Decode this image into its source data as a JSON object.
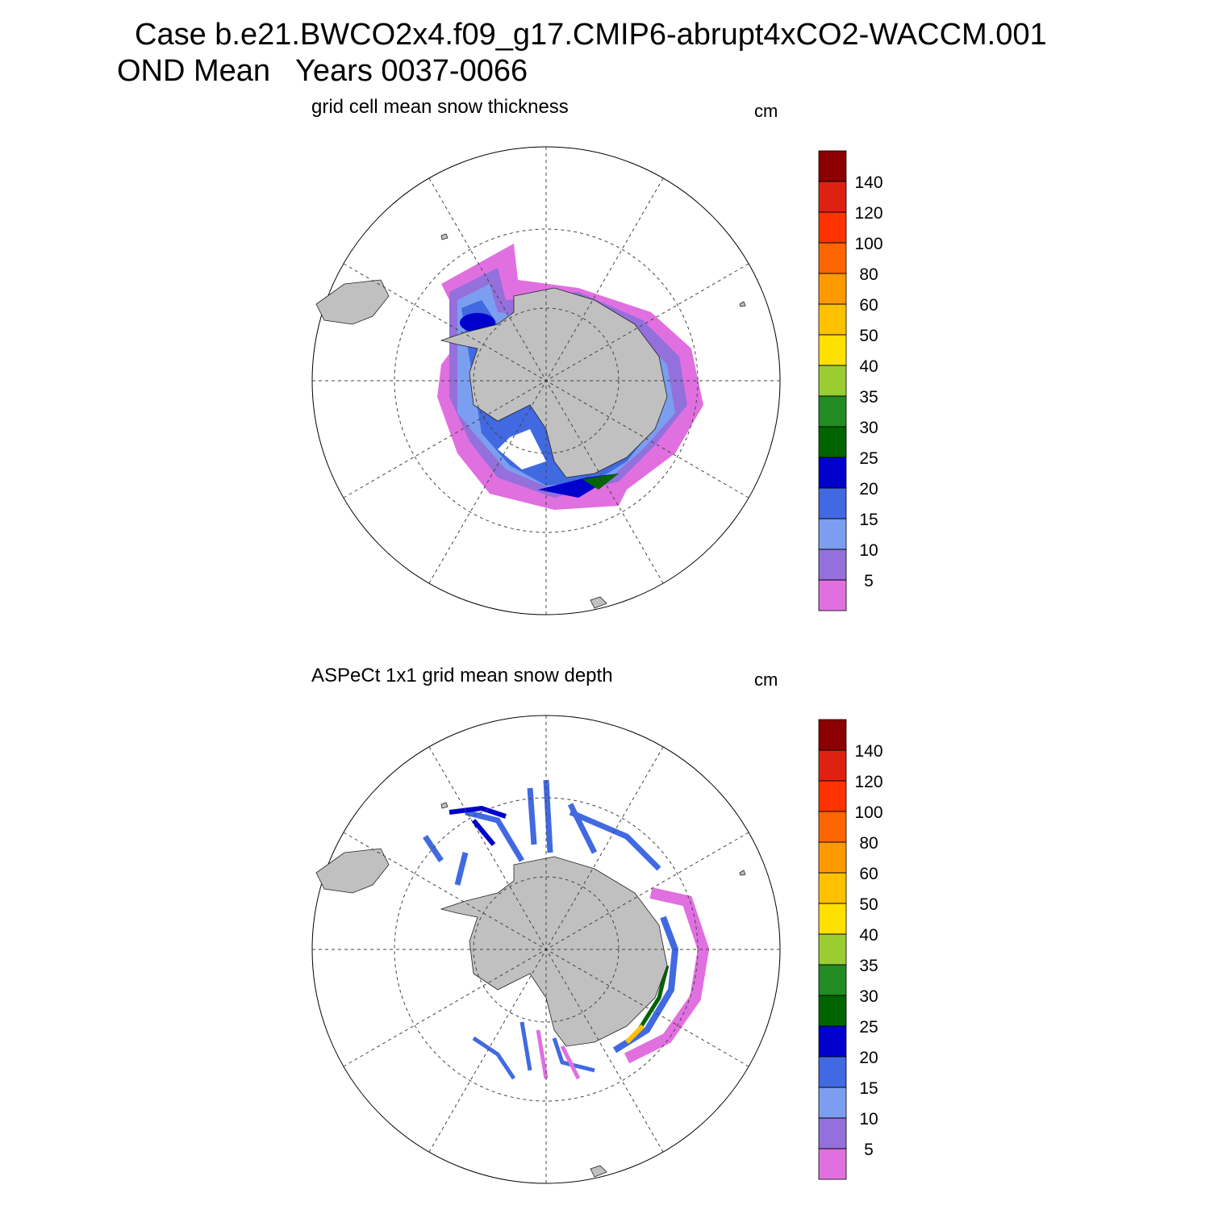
{
  "title": [
    "Case b.e21.BWCO2x4.f09_g17.CMIP6-abrupt4xCO2-WACCM.001",
    "OND Mean   Years 0037-0066"
  ],
  "panels": [
    {
      "subtitle": "grid cell mean snow thickness",
      "units": "cm",
      "colorbar": {
        "levels": [
          5,
          10,
          15,
          20,
          25,
          30,
          35,
          40,
          50,
          60,
          80,
          100,
          120,
          140
        ],
        "colors": [
          "#e070e0",
          "#9370db",
          "#7b9ef0",
          "#4169e1",
          "#0000cd",
          "#006400",
          "#228b22",
          "#9acd32",
          "#ffe000",
          "#ffc000",
          "#ff9900",
          "#ff6600",
          "#ff3300",
          "#dd2211",
          "#8b0000"
        ]
      }
    },
    {
      "subtitle": "ASPeCt 1x1 grid mean snow depth",
      "units": "cm",
      "colorbar": {
        "levels": [
          5,
          10,
          15,
          20,
          25,
          30,
          35,
          40,
          50,
          60,
          80,
          100,
          120,
          140
        ],
        "colors": [
          "#e070e0",
          "#9370db",
          "#7b9ef0",
          "#4169e1",
          "#0000cd",
          "#006400",
          "#228b22",
          "#9acd32",
          "#ffe000",
          "#ffc000",
          "#ff9900",
          "#ff6600",
          "#ff3300",
          "#dd2211",
          "#8b0000"
        ]
      }
    }
  ]
}
